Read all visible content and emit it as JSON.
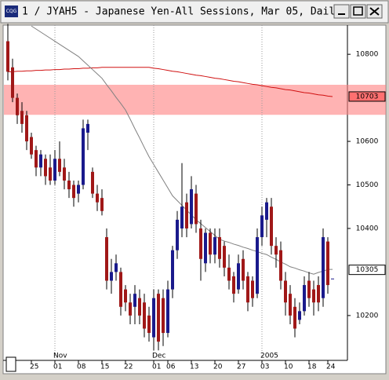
{
  "chart_data": {
    "type": "candlestick",
    "title": "1 / JYAH5 - Japanese Yen-All Sessions, Mar 05, Daily",
    "icon_text": "CQG",
    "categories": [
      null,
      null,
      null,
      null,
      null,
      "25",
      null,
      null,
      null,
      null,
      "01",
      null,
      null,
      null,
      null,
      "08",
      null,
      null,
      null,
      null,
      "15",
      null,
      null,
      null,
      null,
      "22",
      null,
      null,
      null,
      null,
      null,
      "01",
      null,
      null,
      "06",
      null,
      null,
      null,
      null,
      "13",
      null,
      null,
      null,
      null,
      "20",
      null,
      null,
      null,
      null,
      "27",
      null,
      null,
      null,
      null,
      "03",
      null,
      null,
      null,
      null,
      "10",
      null,
      null,
      null,
      null,
      "18",
      null,
      null,
      null,
      "24",
      null
    ],
    "months": [
      null,
      null,
      null,
      null,
      null,
      null,
      null,
      null,
      null,
      null,
      "Nov",
      null,
      null,
      null,
      null,
      null,
      null,
      null,
      null,
      null,
      null,
      null,
      null,
      null,
      null,
      null,
      null,
      null,
      null,
      null,
      null,
      "Dec",
      null,
      null,
      null,
      null,
      null,
      null,
      null,
      null,
      null,
      null,
      null,
      null,
      null,
      null,
      null,
      null,
      null,
      null,
      null,
      null,
      null,
      null,
      "2005",
      null,
      null,
      null,
      null,
      null,
      null,
      null,
      null,
      null,
      null,
      null,
      null,
      null,
      null,
      null
    ],
    "open": [
      10830,
      10770,
      10700,
      10670,
      10660,
      10610,
      10580,
      10540,
      10560,
      10540,
      10510,
      10560,
      10540,
      10510,
      10500,
      10480,
      10500,
      10620,
      10530,
      10480,
      10470,
      10380,
      10280,
      10300,
      10300,
      10260,
      10230,
      10220,
      10240,
      10230,
      10200,
      10150,
      10250,
      10240,
      10160,
      10260,
      10350,
      10400,
      10460,
      10410,
      10480,
      10400,
      10320,
      10390,
      10340,
      10380,
      10360,
      10310,
      10290,
      10260,
      10330,
      10290,
      10280,
      10250,
      10380,
      10420,
      10450,
      10360,
      10350,
      10280,
      10250,
      10220,
      10190,
      10210,
      10280,
      10260,
      10270,
      10240,
      10370,
      10285
    ],
    "high": [
      10870,
      10790,
      10710,
      10690,
      10670,
      10620,
      10590,
      10580,
      10570,
      10570,
      10580,
      10600,
      10560,
      10530,
      10510,
      10510,
      10650,
      10650,
      10540,
      10500,
      10490,
      10400,
      10330,
      10340,
      10310,
      10270,
      10250,
      10270,
      10260,
      10250,
      10220,
      10260,
      10260,
      10260,
      10280,
      10360,
      10440,
      10550,
      10480,
      10520,
      10500,
      10420,
      10400,
      10400,
      10400,
      10400,
      10370,
      10340,
      10300,
      10340,
      10350,
      10300,
      10290,
      10400,
      10450,
      10470,
      10470,
      10380,
      10370,
      10300,
      10270,
      10240,
      10230,
      10290,
      10300,
      10280,
      10290,
      10400,
      10380,
      10285
    ],
    "low": [
      10740,
      10690,
      10640,
      10620,
      10580,
      10560,
      10520,
      10520,
      10500,
      10500,
      10500,
      10520,
      10490,
      10470,
      10450,
      10460,
      10490,
      10580,
      10470,
      10440,
      10430,
      10260,
      10250,
      10280,
      10200,
      10210,
      10180,
      10180,
      10180,
      10150,
      10140,
      10120,
      10120,
      10130,
      10150,
      10240,
      10330,
      10380,
      10380,
      10400,
      10390,
      10280,
      10300,
      10320,
      10320,
      10310,
      10290,
      10260,
      10230,
      10250,
      10260,
      10210,
      10220,
      10240,
      10360,
      10380,
      10340,
      10310,
      10260,
      10200,
      10180,
      10150,
      10180,
      10200,
      10220,
      10200,
      10210,
      10220,
      10250,
      10285
    ],
    "close": [
      10760,
      10700,
      10660,
      10640,
      10600,
      10570,
      10540,
      10570,
      10520,
      10510,
      10560,
      10530,
      10510,
      10490,
      10470,
      10500,
      10630,
      10640,
      10480,
      10460,
      10440,
      10280,
      10300,
      10320,
      10220,
      10230,
      10200,
      10250,
      10200,
      10170,
      10160,
      10240,
      10140,
      10160,
      10260,
      10350,
      10420,
      10450,
      10400,
      10490,
      10410,
      10330,
      10390,
      10340,
      10380,
      10330,
      10310,
      10280,
      10250,
      10320,
      10280,
      10230,
      10240,
      10380,
      10430,
      10460,
      10360,
      10340,
      10280,
      10230,
      10200,
      10170,
      10210,
      10270,
      10240,
      10230,
      10230,
      10380,
      10270,
      10285
    ],
    "up_color": "#1a1a8c",
    "down_color": "#a01818",
    "lines": [
      {
        "color": "#d01010",
        "values": [
          10760,
          10760,
          10761,
          10761,
          10762,
          10762,
          10763,
          10763,
          10764,
          10764,
          10765,
          10765,
          10766,
          10766,
          10767,
          10767,
          10768,
          10768,
          10769,
          10769,
          10770,
          10770,
          10770,
          10770,
          10770,
          10770,
          10770,
          10770,
          10770,
          10770,
          10770,
          10768,
          10767,
          10765,
          10763,
          10761,
          10760,
          10758,
          10756,
          10754,
          10752,
          10751,
          10749,
          10747,
          10745,
          10744,
          10742,
          10740,
          10738,
          10737,
          10735,
          10733,
          10731,
          10730,
          10728,
          10726,
          10724,
          10723,
          10721,
          10719,
          10718,
          10716,
          10714,
          10712,
          10711,
          10709,
          10707,
          10706,
          10704,
          10703
        ]
      },
      {
        "color": "#808080",
        "values": [
          null,
          null,
          null,
          null,
          null,
          10865,
          10858,
          10851,
          10844,
          10837,
          10830,
          10823,
          10816,
          10809,
          10802,
          10795,
          10785,
          10775,
          10765,
          10755,
          10745,
          10730,
          10716,
          10701,
          10687,
          10672,
          10651,
          10629,
          10608,
          10586,
          10565,
          10547,
          10529,
          10511,
          10493,
          10475,
          10464,
          10453,
          10442,
          10431,
          10420,
          10411,
          10402,
          10393,
          10384,
          10375,
          10371,
          10368,
          10364,
          10361,
          10357,
          10354,
          10350,
          10347,
          10343,
          10340,
          10334,
          10329,
          10323,
          10318,
          10312,
          10309,
          10305,
          10302,
          10298,
          10295,
          10299,
          10302,
          10306,
          10306
        ]
      }
    ],
    "band": [
      10661,
      10730
    ],
    "band_color": "#ff8080",
    "markers": [
      {
        "value": 10703,
        "color": "#ff7070"
      },
      {
        "value": 10305,
        "color": "#ffffff"
      }
    ],
    "ylim": [
      10097,
      10867
    ],
    "yticks": [
      10200,
      10400,
      10500,
      10600,
      10800
    ]
  }
}
